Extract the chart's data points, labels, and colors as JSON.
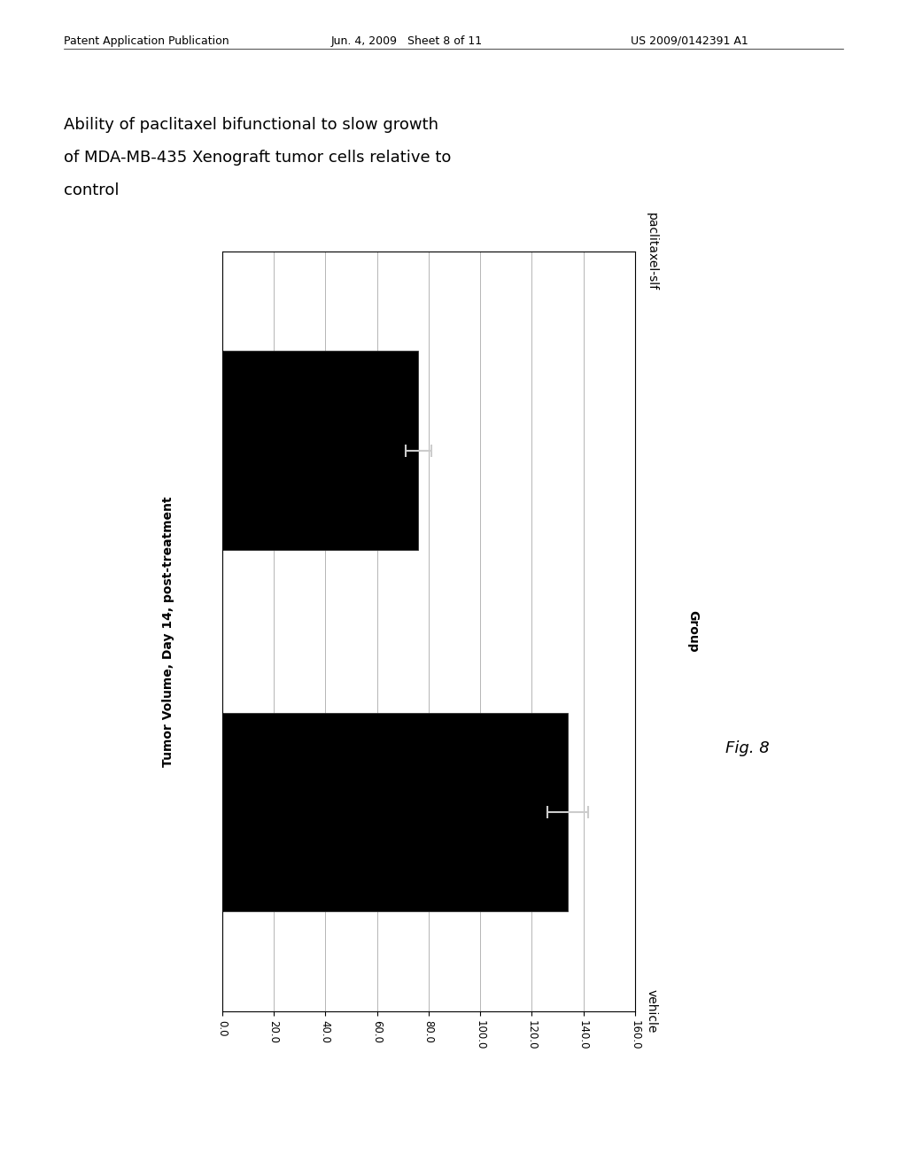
{
  "categories": [
    "vehicle",
    "paclitaxel-slf"
  ],
  "values": [
    134.0,
    76.0
  ],
  "error_low": [
    8.0,
    5.0
  ],
  "error_high": [
    8.0,
    5.0
  ],
  "bar_color": "#000000",
  "bar_edge_color": "#333333",
  "xlabel": "Tumor Volume, Day 14, post-treatment",
  "ylabel": "Group",
  "xlim": [
    0.0,
    160.0
  ],
  "xticks": [
    0.0,
    20.0,
    40.0,
    60.0,
    80.0,
    100.0,
    120.0,
    140.0,
    160.0
  ],
  "xtick_labels": [
    "0.0",
    "20.0",
    "40.0",
    "60.0",
    "80.0",
    "100.0",
    "120.0",
    "140.0",
    "160.0"
  ],
  "title_line1": "Ability of paclitaxel bifunctional to slow growth",
  "title_line2": "of MDA-MB-435 Xenograft tumor cells relative to",
  "title_line3": "control",
  "fig_label": "Fig. 8",
  "patent_header": "Patent Application Publication",
  "patent_date": "Jun. 4, 2009   Sheet 8 of 11",
  "patent_number": "US 2009/0142391 A1",
  "background_color": "#ffffff",
  "plot_bg_color": "#ffffff",
  "grid_color": "#aaaaaa",
  "bar_height": 0.55,
  "title_fontsize": 13,
  "axis_label_fontsize": 10,
  "tick_fontsize": 8.5,
  "header_fontsize": 9
}
